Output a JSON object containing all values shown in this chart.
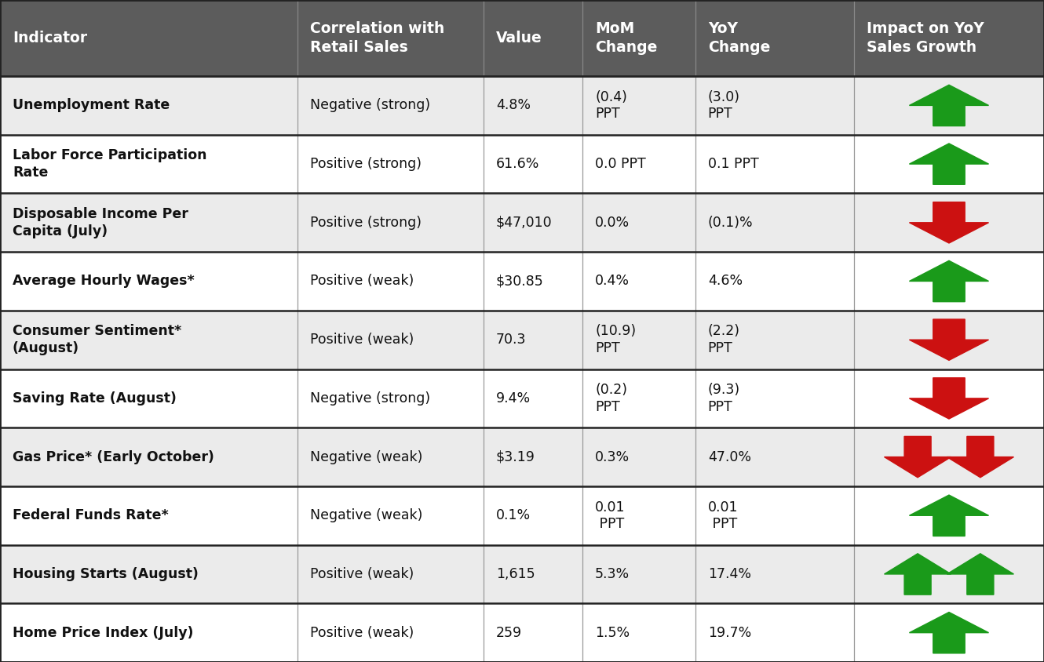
{
  "header_bg": "#5c5c5c",
  "header_text_color": "#ffffff",
  "row_bg_odd": "#ebebeb",
  "row_bg_even": "#ffffff",
  "border_color": "#222222",
  "sep_color": "#999999",
  "text_color": "#111111",
  "green": "#1a9a1a",
  "red": "#cc1111",
  "col_headers": [
    "Indicator",
    "Correlation with\nRetail Sales",
    "Value",
    "MoM\nChange",
    "YoY\nChange",
    "Impact on YoY\nSales Growth"
  ],
  "col_bounds": [
    0.0,
    0.285,
    0.463,
    0.558,
    0.666,
    0.818,
    1.0
  ],
  "header_aligns": [
    "left",
    "left",
    "left",
    "left",
    "left",
    "left"
  ],
  "rows": [
    {
      "indicator": "Unemployment Rate",
      "correlation": "Negative (strong)",
      "value": "4.8%",
      "mom": "(0.4)\nPPT",
      "yoy": "(3.0)\nPPT",
      "arrow": "up",
      "arrow_count": 1,
      "arrow_color": "green"
    },
    {
      "indicator": "Labor Force Participation\nRate",
      "correlation": "Positive (strong)",
      "value": "61.6%",
      "mom": "0.0 PPT",
      "yoy": "0.1 PPT",
      "arrow": "up",
      "arrow_count": 1,
      "arrow_color": "green"
    },
    {
      "indicator": "Disposable Income Per\nCapita (July)",
      "correlation": "Positive (strong)",
      "value": "$47,010",
      "mom": "0.0%",
      "yoy": "(0.1)%",
      "arrow": "down",
      "arrow_count": 1,
      "arrow_color": "red"
    },
    {
      "indicator": "Average Hourly Wages*",
      "correlation": "Positive (weak)",
      "value": "$30.85",
      "mom": "0.4%",
      "yoy": "4.6%",
      "arrow": "up",
      "arrow_count": 1,
      "arrow_color": "green"
    },
    {
      "indicator": "Consumer Sentiment*\n(August)",
      "correlation": "Positive (weak)",
      "value": "70.3",
      "mom": "(10.9)\nPPT",
      "yoy": "(2.2)\nPPT",
      "arrow": "down",
      "arrow_count": 1,
      "arrow_color": "red"
    },
    {
      "indicator": "Saving Rate (August)",
      "correlation": "Negative (strong)",
      "value": "9.4%",
      "mom": "(0.2)\nPPT",
      "yoy": "(9.3)\nPPT",
      "arrow": "down",
      "arrow_count": 1,
      "arrow_color": "red"
    },
    {
      "indicator": "Gas Price* (Early October)",
      "correlation": "Negative (weak)",
      "value": "$3.19",
      "mom": "0.3%",
      "yoy": "47.0%",
      "arrow": "down",
      "arrow_count": 2,
      "arrow_color": "red"
    },
    {
      "indicator": "Federal Funds Rate*",
      "correlation": "Negative (weak)",
      "value": "0.1%",
      "mom": "0.01\n PPT",
      "yoy": "0.01\n PPT",
      "arrow": "up",
      "arrow_count": 1,
      "arrow_color": "green"
    },
    {
      "indicator": "Housing Starts (August)",
      "correlation": "Positive (weak)",
      "value": "1,615",
      "mom": "5.3%",
      "yoy": "17.4%",
      "arrow": "up",
      "arrow_count": 2,
      "arrow_color": "green"
    },
    {
      "indicator": "Home Price Index (July)",
      "correlation": "Positive (weak)",
      "value": "259",
      "mom": "1.5%",
      "yoy": "19.7%",
      "arrow": "up",
      "arrow_count": 1,
      "arrow_color": "green"
    }
  ]
}
